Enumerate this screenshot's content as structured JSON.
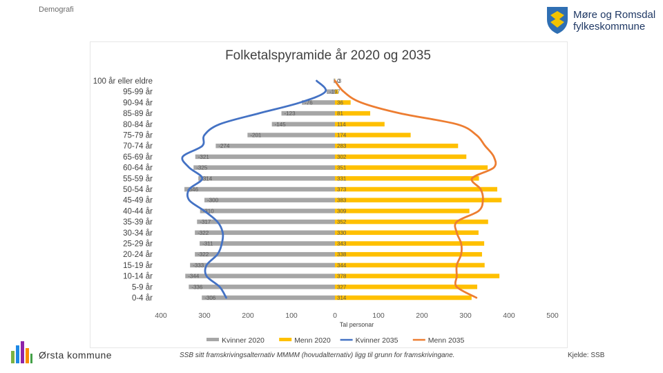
{
  "slide": {
    "label": "Demografi",
    "footer_note": "SSB sitt framskrivingsalternativ MMMM (hovudalternativ) ligg til grunn for framskrivingane.",
    "source": "Kjelde: SSB"
  },
  "logo": {
    "line1": "Møre og Romsdal",
    "line2": "fylkeskommune",
    "shield_icon": "county-coat-of-arms"
  },
  "municipality": {
    "name": "Ørsta kommune",
    "icon": "municipality-logo"
  },
  "colors": {
    "kvinner_2020": "#a6a6a6",
    "menn_2020": "#ffc000",
    "kvinner_2035": "#4472c4",
    "menn_2035": "#ed7d31"
  },
  "chart_data": {
    "type": "bar",
    "title": "Folketalspyramide år 2020 og 2035",
    "xlabel": "Tal personar",
    "xlim": [
      -400,
      500
    ],
    "xticks": [
      -400,
      -300,
      -200,
      -100,
      0,
      100,
      200,
      300,
      400,
      500
    ],
    "xtick_labels": [
      "400",
      "300",
      "200",
      "100",
      "0",
      "100",
      "200",
      "300",
      "400",
      "500"
    ],
    "grid": false,
    "legend_position": "bottom",
    "categories": [
      "100 år eller eldre",
      "95-99 år",
      "90-94 år",
      "85-89 år",
      "80-84 år",
      "75-79 år",
      "70-74 år",
      "65-69 år",
      "60-64 år",
      "55-59 år",
      "50-54 år",
      "45-49 år",
      "40-44 år",
      "35-39 år",
      "30-34 år",
      "25-29 år",
      "20-24 år",
      "15-19 år",
      "10-14 år",
      "5-9 år",
      "0-4 år"
    ],
    "series": [
      {
        "name": "Kvinner 2020",
        "kind": "bar",
        "values": [
          -3,
          -19,
          -76,
          -123,
          -145,
          -201,
          -274,
          -321,
          -325,
          -314,
          -346,
          -300,
          -310,
          -317,
          -322,
          -311,
          -322,
          -333,
          -344,
          -336,
          -306
        ],
        "labels": [
          "-3",
          "-19",
          "-76",
          "-123",
          "-145",
          "-201",
          "-274",
          "-321",
          "-325",
          "-314",
          "-346",
          "-300",
          "-310",
          "-317",
          "-322",
          "-311",
          "-322",
          "-333",
          "-344",
          "-336",
          "-306"
        ]
      },
      {
        "name": "Menn 2020",
        "kind": "bar",
        "values": [
          0,
          7,
          36,
          81,
          114,
          174,
          283,
          302,
          351,
          331,
          373,
          383,
          309,
          352,
          330,
          343,
          338,
          344,
          378,
          327,
          314
        ],
        "labels": [
          "0",
          "7",
          "36",
          "81",
          "114",
          "174",
          "283",
          "302",
          "351",
          "331",
          "373",
          "383",
          "309",
          "352",
          "330",
          "343",
          "338",
          "344",
          "378",
          "327",
          "314"
        ]
      },
      {
        "name": "Kvinner 2035",
        "kind": "line",
        "values": [
          -42,
          -22,
          -80,
          -175,
          -265,
          -300,
          -305,
          -350,
          -335,
          -305,
          -335,
          -335,
          -300,
          -270,
          -258,
          -260,
          -270,
          -295,
          -295,
          -265,
          -250
        ]
      },
      {
        "name": "Menn 2035",
        "kind": "line",
        "values": [
          0,
          20,
          60,
          150,
          280,
          325,
          345,
          365,
          365,
          315,
          335,
          340,
          330,
          280,
          280,
          290,
          290,
          280,
          280,
          280,
          325
        ]
      }
    ]
  }
}
